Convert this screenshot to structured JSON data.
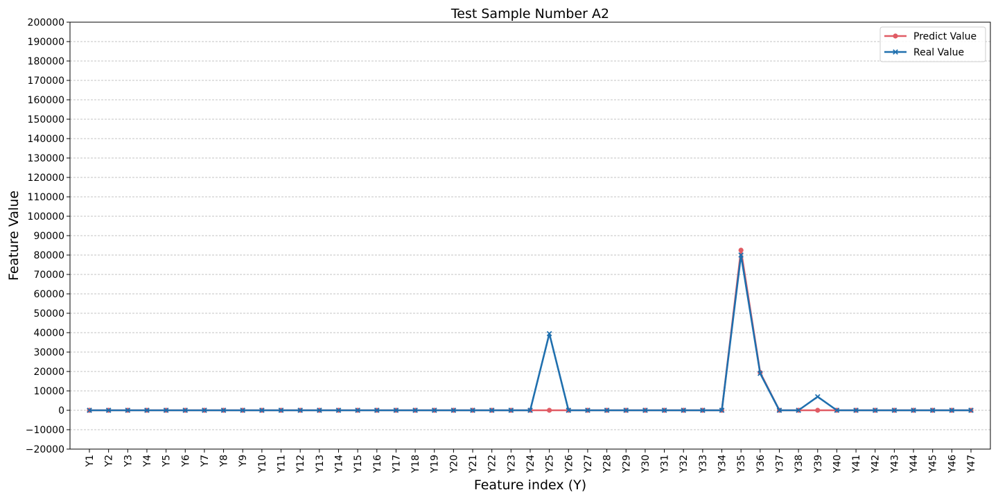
{
  "chart_data": {
    "type": "line",
    "title": "Test Sample Number A2",
    "xlabel": "Feature index (Y)",
    "ylabel": "Feature Value",
    "ylim": [
      -20000,
      200000
    ],
    "ytick_step": 10000,
    "yticks": [
      "−20000",
      "−10000",
      "0",
      "10000",
      "20000",
      "30000",
      "40000",
      "50000",
      "60000",
      "70000",
      "80000",
      "90000",
      "100000",
      "110000",
      "120000",
      "130000",
      "140000",
      "150000",
      "160000",
      "170000",
      "180000",
      "190000",
      "200000"
    ],
    "grid": true,
    "legend_position": "top-right",
    "categories": [
      "Y1",
      "Y2",
      "Y3",
      "Y4",
      "Y5",
      "Y6",
      "Y7",
      "Y8",
      "Y9",
      "Y10",
      "Y11",
      "Y12",
      "Y13",
      "Y14",
      "Y15",
      "Y16",
      "Y17",
      "Y18",
      "Y19",
      "Y20",
      "Y21",
      "Y22",
      "Y23",
      "Y24",
      "Y25",
      "Y26",
      "Y27",
      "Y28",
      "Y29",
      "Y30",
      "Y31",
      "Y32",
      "Y33",
      "Y34",
      "Y35",
      "Y36",
      "Y37",
      "Y38",
      "Y39",
      "Y40",
      "Y41",
      "Y42",
      "Y43",
      "Y44",
      "Y45",
      "Y46",
      "Y47"
    ],
    "series": [
      {
        "name": "Predict Value",
        "color": "#e05b64",
        "marker": "circle",
        "values": [
          0,
          0,
          0,
          0,
          0,
          0,
          0,
          0,
          0,
          0,
          0,
          0,
          0,
          0,
          0,
          0,
          0,
          0,
          0,
          0,
          0,
          0,
          0,
          0,
          0,
          0,
          0,
          0,
          0,
          0,
          0,
          0,
          0,
          0,
          82500,
          19500,
          0,
          0,
          0,
          0,
          0,
          0,
          0,
          0,
          0,
          0,
          0
        ]
      },
      {
        "name": "Real Value",
        "color": "#1f6fae",
        "marker": "x",
        "values": [
          0,
          0,
          0,
          0,
          0,
          0,
          0,
          0,
          0,
          0,
          0,
          0,
          0,
          0,
          0,
          0,
          0,
          0,
          0,
          0,
          0,
          0,
          0,
          0,
          39500,
          0,
          0,
          0,
          0,
          0,
          0,
          0,
          0,
          0,
          80000,
          19000,
          0,
          0,
          7000,
          0,
          0,
          0,
          0,
          0,
          0,
          0,
          0
        ]
      }
    ]
  }
}
